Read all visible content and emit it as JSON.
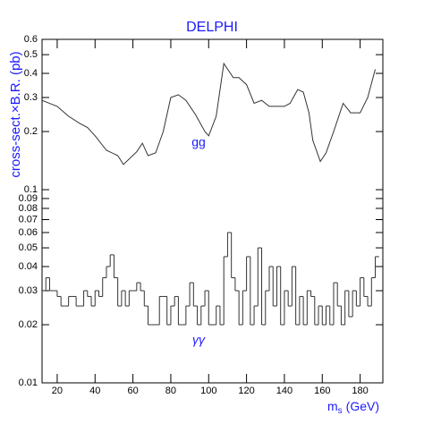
{
  "chart_data": {
    "type": "line",
    "title": "DELPHI",
    "x_label": {
      "main": "m",
      "sub": "s",
      "unit": "(GeV)"
    },
    "y_label": "cross-sect.×B.R. (pb)",
    "log_y": true,
    "xlim": [
      12,
      192
    ],
    "ylim": [
      0.01,
      0.6
    ],
    "xticks": [
      20,
      40,
      60,
      80,
      100,
      120,
      140,
      160,
      180
    ],
    "yticks": [
      0.01,
      0.02,
      0.03,
      0.04,
      0.05,
      0.06,
      0.07,
      0.08,
      0.09,
      0.1,
      0.2,
      0.3,
      0.4,
      0.5,
      0.6
    ],
    "annotations": [
      "gg",
      "γγ"
    ],
    "series": [
      {
        "color": "#333333",
        "x": [
          12,
          20,
          26,
          32,
          36,
          40,
          46,
          52,
          55,
          62,
          65,
          68,
          72,
          76,
          80,
          84,
          88,
          93,
          98,
          100,
          104,
          108,
          113,
          116,
          120,
          124,
          128,
          132,
          135,
          140,
          143,
          147,
          150,
          153,
          155,
          159,
          162,
          166,
          171,
          175,
          180,
          184,
          188
        ],
        "values": [
          0.29,
          0.27,
          0.24,
          0.22,
          0.21,
          0.19,
          0.16,
          0.15,
          0.135,
          0.157,
          0.174,
          0.15,
          0.155,
          0.2,
          0.3,
          0.31,
          0.29,
          0.245,
          0.2,
          0.19,
          0.24,
          0.45,
          0.38,
          0.38,
          0.35,
          0.28,
          0.29,
          0.27,
          0.27,
          0.27,
          0.28,
          0.33,
          0.32,
          0.25,
          0.18,
          0.14,
          0.155,
          0.2,
          0.28,
          0.25,
          0.25,
          0.3,
          0.42
        ]
      },
      {
        "color": "#333333",
        "type": "step",
        "bins": [
          12,
          14,
          16,
          18,
          20,
          22,
          24,
          26,
          28,
          30,
          32,
          34,
          36,
          38,
          40,
          42,
          44,
          46,
          48,
          50,
          52,
          54,
          56,
          58,
          60,
          62,
          64,
          66,
          68,
          70,
          72,
          74,
          76,
          78,
          80,
          82,
          84,
          86,
          88,
          90,
          92,
          94,
          96,
          98,
          100,
          102,
          104,
          106,
          108,
          110,
          112,
          114,
          116,
          118,
          120,
          122,
          124,
          126,
          128,
          130,
          132,
          134,
          136,
          138,
          140,
          142,
          144,
          146,
          148,
          150,
          152,
          154,
          156,
          158,
          160,
          162,
          164,
          166,
          168,
          170,
          172,
          174,
          176,
          178,
          180,
          182,
          184,
          186,
          188,
          190
        ],
        "values": [
          0.03,
          0.035,
          0.03,
          0.03,
          0.028,
          0.025,
          0.025,
          0.028,
          0.028,
          0.025,
          0.025,
          0.03,
          0.028,
          0.025,
          0.03,
          0.028,
          0.035,
          0.04,
          0.046,
          0.035,
          0.025,
          0.03,
          0.025,
          0.03,
          0.03,
          0.033,
          0.03,
          0.025,
          0.02,
          0.02,
          0.02,
          0.028,
          0.028,
          0.02,
          0.025,
          0.028,
          0.02,
          0.02,
          0.025,
          0.033,
          0.025,
          0.02,
          0.025,
          0.03,
          0.02,
          0.02,
          0.025,
          0.02,
          0.045,
          0.06,
          0.035,
          0.03,
          0.02,
          0.03,
          0.045,
          0.02,
          0.025,
          0.05,
          0.02,
          0.03,
          0.04,
          0.025,
          0.04,
          0.02,
          0.03,
          0.025,
          0.04,
          0.02,
          0.028,
          0.02,
          0.03,
          0.028,
          0.02,
          0.025,
          0.02,
          0.025,
          0.02,
          0.033,
          0.025,
          0.02,
          0.03,
          0.022,
          0.03,
          0.025,
          0.035,
          0.028,
          0.025,
          0.035,
          0.045
        ]
      }
    ]
  }
}
